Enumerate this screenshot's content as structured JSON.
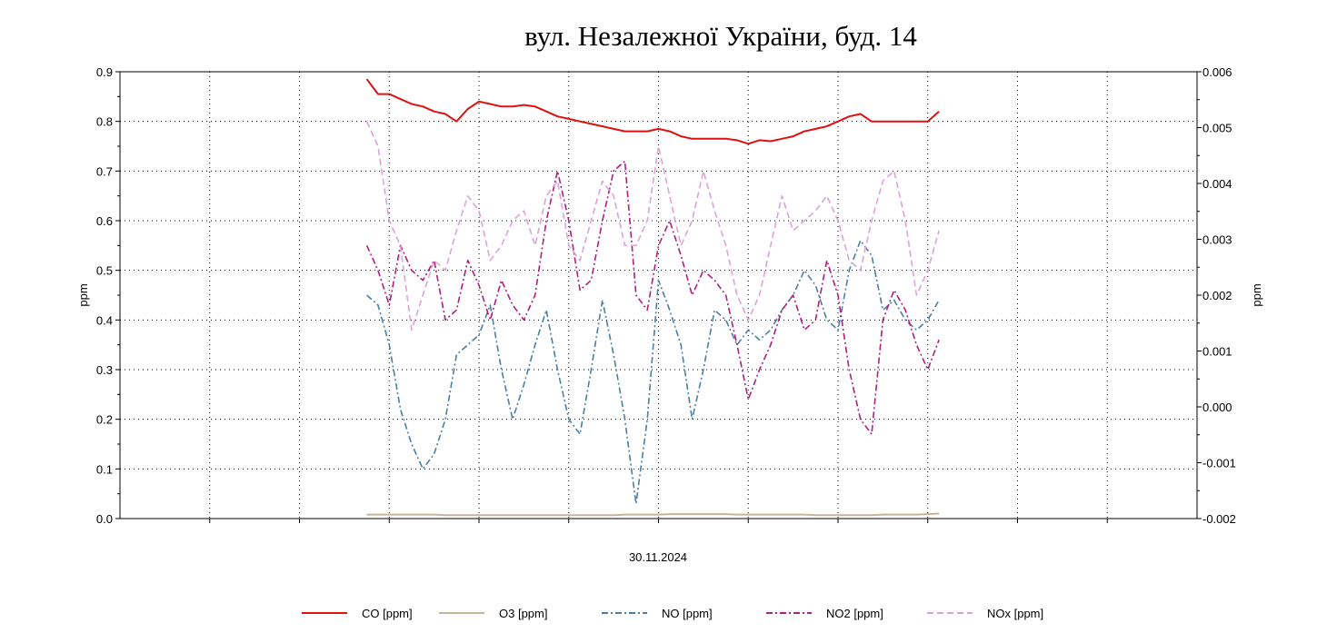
{
  "chart_data": {
    "type": "line",
    "title": "вул. Незалежної України, буд. 14",
    "xlabel": "30.11.2024",
    "ylabel": "ppm",
    "y2label": "ppm",
    "ylim": [
      0,
      0.9
    ],
    "y2lim": [
      -0.002,
      0.006
    ],
    "yticks": [
      "0.0",
      "0.1",
      "0.2",
      "0.3",
      "0.4",
      "0.5",
      "0.6",
      "0.7",
      "0.8",
      "0.9"
    ],
    "y2ticks": [
      "-0.002",
      "-0.001",
      "0.000",
      "0.001",
      "0.002",
      "0.003",
      "0.004",
      "0.005",
      "0.006"
    ],
    "xlim_hours": [
      0,
      24
    ],
    "grid": true,
    "legend_position": "bottom",
    "x_hours": [
      5.5,
      5.75,
      6,
      6.25,
      6.5,
      6.75,
      7,
      7.25,
      7.5,
      7.75,
      8,
      8.25,
      8.5,
      8.75,
      9,
      9.25,
      9.5,
      9.75,
      10,
      10.25,
      10.5,
      10.75,
      11,
      11.25,
      11.5,
      11.75,
      12,
      12.25,
      12.5,
      12.75,
      13,
      13.25,
      13.5,
      13.75,
      14,
      14.25,
      14.5,
      14.75,
      15,
      15.25,
      15.5,
      15.75,
      16,
      16.25,
      16.5,
      16.75,
      17,
      17.25,
      17.5,
      17.75,
      18,
      18.25
    ],
    "series": [
      {
        "name": "CO [ppm]",
        "color": "#e01010",
        "style": "solid",
        "values": [
          0.885,
          0.855,
          0.855,
          0.845,
          0.835,
          0.83,
          0.82,
          0.815,
          0.8,
          0.825,
          0.84,
          0.835,
          0.83,
          0.83,
          0.833,
          0.83,
          0.82,
          0.81,
          0.805,
          0.8,
          0.795,
          0.79,
          0.785,
          0.78,
          0.78,
          0.78,
          0.785,
          0.78,
          0.77,
          0.765,
          0.765,
          0.765,
          0.765,
          0.762,
          0.755,
          0.762,
          0.76,
          0.765,
          0.77,
          0.78,
          0.785,
          0.79,
          0.8,
          0.81,
          0.815,
          0.8,
          0.8,
          0.8,
          0.8,
          0.8,
          0.8,
          0.82
        ]
      },
      {
        "name": "O3 [ppm]",
        "color": "#c8b496",
        "style": "solid",
        "values": [
          0.008,
          0.008,
          0.008,
          0.008,
          0.008,
          0.008,
          0.008,
          0.007,
          0.007,
          0.007,
          0.007,
          0.007,
          0.007,
          0.007,
          0.007,
          0.007,
          0.007,
          0.007,
          0.007,
          0.007,
          0.007,
          0.007,
          0.007,
          0.008,
          0.008,
          0.008,
          0.008,
          0.009,
          0.009,
          0.009,
          0.009,
          0.009,
          0.009,
          0.008,
          0.008,
          0.008,
          0.008,
          0.008,
          0.008,
          0.008,
          0.007,
          0.007,
          0.007,
          0.007,
          0.007,
          0.007,
          0.008,
          0.008,
          0.008,
          0.008,
          0.009,
          0.01
        ]
      },
      {
        "name": "NO [ppm]",
        "color": "#4a7fa3",
        "style": "dashdot",
        "values": [
          0.45,
          0.43,
          0.35,
          0.22,
          0.15,
          0.1,
          0.13,
          0.2,
          0.33,
          0.35,
          0.37,
          0.43,
          0.3,
          0.2,
          0.27,
          0.35,
          0.42,
          0.3,
          0.2,
          0.17,
          0.3,
          0.44,
          0.33,
          0.2,
          0.03,
          0.2,
          0.48,
          0.42,
          0.35,
          0.2,
          0.3,
          0.42,
          0.4,
          0.35,
          0.38,
          0.36,
          0.38,
          0.42,
          0.45,
          0.5,
          0.47,
          0.4,
          0.38,
          0.5,
          0.56,
          0.53,
          0.42,
          0.44,
          0.4,
          0.38,
          0.4,
          0.44
        ]
      },
      {
        "name": "NO2 [ppm]",
        "color": "#b01e80",
        "style": "dashdot",
        "values": [
          0.55,
          0.5,
          0.43,
          0.55,
          0.5,
          0.48,
          0.52,
          0.4,
          0.42,
          0.52,
          0.47,
          0.4,
          0.48,
          0.43,
          0.4,
          0.45,
          0.6,
          0.7,
          0.6,
          0.46,
          0.48,
          0.6,
          0.7,
          0.72,
          0.45,
          0.42,
          0.55,
          0.6,
          0.53,
          0.45,
          0.5,
          0.48,
          0.45,
          0.35,
          0.24,
          0.3,
          0.35,
          0.42,
          0.45,
          0.38,
          0.4,
          0.52,
          0.45,
          0.3,
          0.2,
          0.17,
          0.4,
          0.46,
          0.42,
          0.35,
          0.3,
          0.36
        ]
      },
      {
        "name": "NOx [ppm]",
        "color": "#dba4d6",
        "style": "dashed",
        "values": [
          0.8,
          0.75,
          0.6,
          0.55,
          0.38,
          0.45,
          0.52,
          0.5,
          0.58,
          0.65,
          0.62,
          0.52,
          0.55,
          0.6,
          0.62,
          0.55,
          0.65,
          0.68,
          0.55,
          0.52,
          0.6,
          0.68,
          0.65,
          0.55,
          0.55,
          0.6,
          0.75,
          0.65,
          0.55,
          0.6,
          0.7,
          0.62,
          0.55,
          0.45,
          0.4,
          0.45,
          0.55,
          0.65,
          0.58,
          0.6,
          0.62,
          0.65,
          0.6,
          0.52,
          0.5,
          0.6,
          0.68,
          0.7,
          0.6,
          0.45,
          0.5,
          0.58
        ]
      }
    ]
  }
}
